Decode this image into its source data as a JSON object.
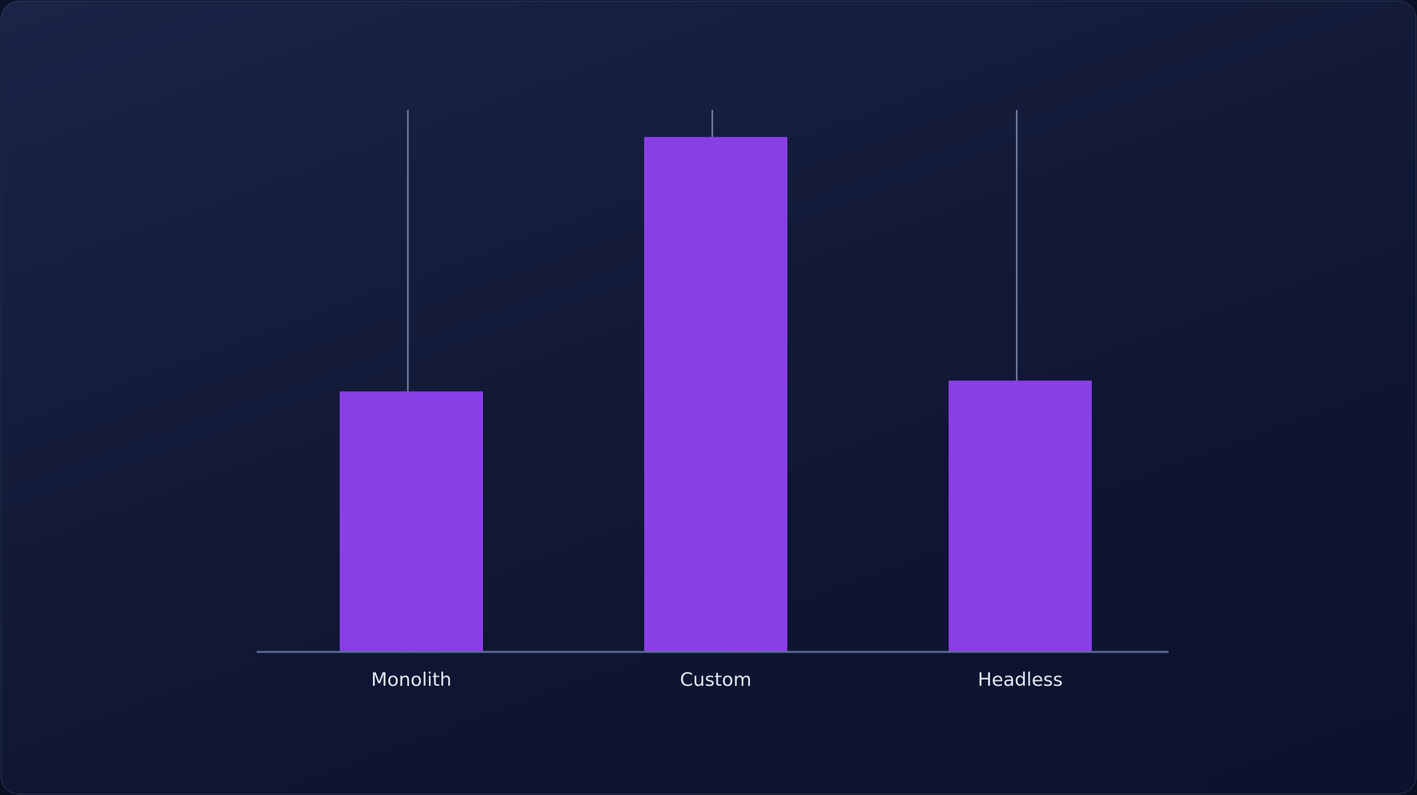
{
  "chart_data": {
    "type": "bar",
    "categories": [
      "Monolith",
      "Custom",
      "Headless"
    ],
    "values": [
      48,
      95,
      50
    ],
    "error_upper": [
      100,
      100,
      100
    ],
    "ylim": [
      0,
      100
    ],
    "title": "",
    "xlabel": "",
    "ylabel": "",
    "grid": false,
    "legend": "none",
    "colors": {
      "bar": "#893fe6",
      "whisker": "#7f8bb0",
      "axis": "#5a6790",
      "label": "#e4e7f0"
    }
  }
}
